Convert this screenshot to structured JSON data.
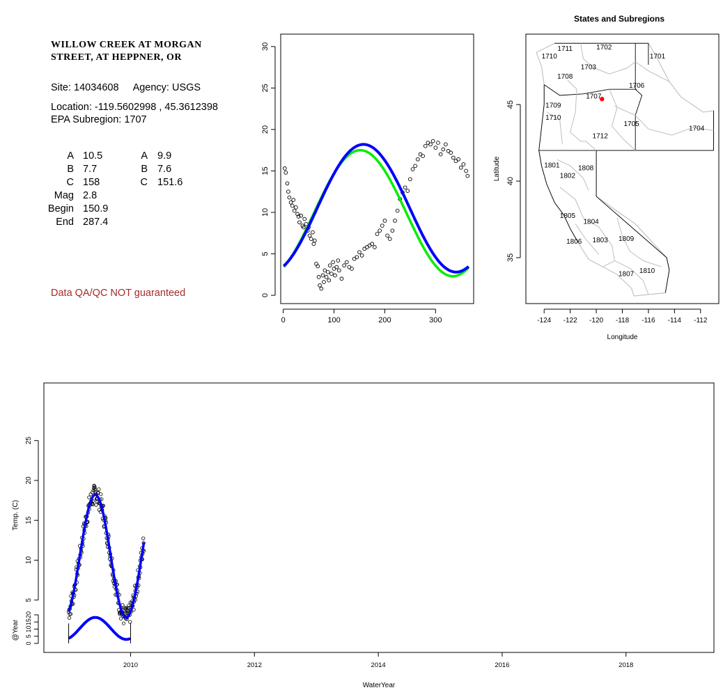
{
  "info": {
    "station_line1": "WILLOW CREEK AT MORGAN",
    "station_line2": "STREET, AT HEPPNER, OR",
    "site_label": "Site: 14034608",
    "agency_label": "Agency: USGS",
    "location_label": "Location: -119.5602998 , 45.3612398",
    "subregion_label": "EPA Subregion: 1707",
    "params_left": [
      {
        "label": "A",
        "value": "10.5"
      },
      {
        "label": "B",
        "value": "7.7"
      },
      {
        "label": "C",
        "value": "158"
      },
      {
        "label": "Mag",
        "value": "2.8"
      },
      {
        "label": "Begin",
        "value": "150.9"
      },
      {
        "label": "End",
        "value": "287.4"
      }
    ],
    "params_right": [
      {
        "label": "A",
        "value": "9.9"
      },
      {
        "label": "B",
        "value": "7.6"
      },
      {
        "label": "C",
        "value": "151.6"
      }
    ],
    "disclaimer": "Data QA/QC NOT guaranteed"
  },
  "colors": {
    "fit_blue": "#0000ff",
    "fit_green": "#00ee00",
    "point_red": "#ff0000",
    "disclaimer": "#a52a2a",
    "subregion_border": "#bebebe"
  },
  "chart_data": [
    {
      "type": "scatter",
      "title": "",
      "xlabel": "",
      "ylabel": "",
      "xlim": [
        -5,
        375
      ],
      "ylim": [
        -1,
        31.5
      ],
      "x_ticks": [
        "0",
        "100",
        "200",
        "300"
      ],
      "y_ticks": [
        "0",
        "5",
        "10",
        "15",
        "20",
        "25",
        "30"
      ],
      "series": [
        {
          "kind": "points",
          "x": [
            3,
            5,
            8,
            10,
            12,
            15,
            18,
            20,
            22,
            25,
            28,
            30,
            32,
            35,
            38,
            40,
            42,
            45,
            48,
            50,
            52,
            55,
            58,
            60,
            62,
            65,
            68,
            70,
            72,
            75,
            78,
            80,
            82,
            85,
            88,
            90,
            92,
            95,
            98,
            100,
            102,
            105,
            108,
            110,
            115,
            120,
            125,
            130,
            135,
            140,
            145,
            150,
            155,
            160,
            165,
            170,
            175,
            180,
            185,
            190,
            195,
            200,
            205,
            210,
            215,
            220,
            225,
            230,
            235,
            240,
            245,
            250,
            255,
            260,
            265,
            270,
            275,
            280,
            285,
            290,
            295,
            300,
            305,
            310,
            315,
            320,
            325,
            330,
            335,
            340,
            345,
            350,
            355,
            360,
            363
          ],
          "y": [
            15.3,
            14.8,
            13.5,
            12.5,
            11.8,
            11.2,
            10.8,
            11.5,
            10.2,
            10.6,
            9.8,
            9.5,
            8.8,
            9.6,
            8.4,
            8.2,
            9.2,
            8.6,
            7.8,
            8.2,
            7.2,
            6.8,
            7.6,
            6.2,
            6.6,
            3.8,
            3.5,
            2.2,
            1.2,
            0.8,
            2.4,
            1.6,
            3.0,
            2.2,
            2.8,
            1.8,
            3.6,
            2.6,
            4.0,
            3.2,
            2.4,
            3.4,
            4.2,
            3.0,
            2.0,
            3.6,
            4.0,
            3.4,
            3.2,
            4.4,
            4.6,
            5.2,
            4.8,
            5.6,
            5.8,
            6.0,
            6.2,
            5.8,
            7.4,
            7.8,
            8.4,
            9.0,
            7.2,
            6.8,
            7.8,
            9.0,
            10.2,
            11.6,
            12.4,
            13.0,
            12.6,
            14.0,
            15.2,
            15.6,
            16.4,
            17.0,
            16.8,
            18.0,
            18.4,
            18.2,
            18.6,
            17.8,
            18.4,
            17.0,
            17.6,
            18.2,
            17.4,
            17.2,
            16.6,
            16.2,
            16.4,
            15.4,
            15.8,
            15.0,
            14.4
          ]
        },
        {
          "kind": "line",
          "name": "",
          "color": "#00ee00",
          "params": {
            "A": 9.9,
            "B": 7.6,
            "C": 151.6
          },
          "x_range": [
            1,
            365
          ]
        },
        {
          "kind": "line",
          "name": "",
          "color": "#0000ff",
          "params": {
            "A": 10.5,
            "B": 7.7,
            "C": 158
          },
          "x_range": [
            1,
            365
          ]
        }
      ]
    },
    {
      "type": "map",
      "title": "States and Subregions",
      "xlabel": "Longitude",
      "ylabel": "Latitude",
      "xlim": [
        -125.4,
        -110.6
      ],
      "ylim": [
        32,
        49.6
      ],
      "x_ticks": [
        "-124",
        "-122",
        "-120",
        "-118",
        "-116",
        "-114",
        "-112"
      ],
      "y_ticks": [
        "35",
        "40",
        "45"
      ],
      "subregions": [
        {
          "label": "1702",
          "lon": -119.4,
          "lat": 48.6
        },
        {
          "label": "1701",
          "lon": -115.3,
          "lat": 48.0
        },
        {
          "label": "1711",
          "lon": -122.4,
          "lat": 48.5
        },
        {
          "label": "1710",
          "lon": -123.6,
          "lat": 48.0
        },
        {
          "label": "1703",
          "lon": -120.6,
          "lat": 47.3
        },
        {
          "label": "1708",
          "lon": -122.4,
          "lat": 46.7
        },
        {
          "label": "1706",
          "lon": -116.9,
          "lat": 46.1
        },
        {
          "label": "1707",
          "lon": -120.2,
          "lat": 45.4
        },
        {
          "label": "1709",
          "lon": -123.3,
          "lat": 44.8
        },
        {
          "label": "1710",
          "lon": -123.3,
          "lat": 44.0
        },
        {
          "label": "1705",
          "lon": -117.3,
          "lat": 43.6
        },
        {
          "label": "1704",
          "lon": -112.3,
          "lat": 43.3
        },
        {
          "label": "1712",
          "lon": -119.7,
          "lat": 42.8
        },
        {
          "label": "1801",
          "lon": -123.4,
          "lat": 40.9
        },
        {
          "label": "1808",
          "lon": -120.8,
          "lat": 40.7
        },
        {
          "label": "1802",
          "lon": -122.2,
          "lat": 40.2
        },
        {
          "label": "1805",
          "lon": -122.2,
          "lat": 37.6
        },
        {
          "label": "1804",
          "lon": -120.4,
          "lat": 37.2
        },
        {
          "label": "1806",
          "lon": -121.7,
          "lat": 35.9
        },
        {
          "label": "1803",
          "lon": -119.7,
          "lat": 36.0
        },
        {
          "label": "1809",
          "lon": -117.7,
          "lat": 36.1
        },
        {
          "label": "1807",
          "lon": -117.7,
          "lat": 33.8
        },
        {
          "label": "1810",
          "lon": -116.1,
          "lat": 34.0
        }
      ],
      "site_point": {
        "lon": -119.5602998,
        "lat": 45.3612398
      }
    },
    {
      "type": "scatter",
      "title": "",
      "xlabel": "WaterYear",
      "ylabel": "Temp. (C)",
      "ylabel2": "@Year",
      "xlim": [
        2008.6,
        2019.42
      ],
      "ylim": [
        -1,
        31
      ],
      "x_ticks": [
        "2010",
        "2012",
        "2014",
        "2016",
        "2018"
      ],
      "y_ticks": [
        "5",
        "10",
        "15",
        "20",
        "25"
      ],
      "y2_ticks": [
        "0",
        "5",
        "10",
        "15",
        "20"
      ],
      "series": [
        {
          "kind": "points-and-fit",
          "color": "#0000ff",
          "x_range": [
            2009.0,
            2010.22
          ],
          "params": {
            "A": 10.5,
            "B": 7.7,
            "C": 158
          }
        },
        {
          "kind": "annual-fit",
          "color": "#0000ff",
          "x_range": [
            2009.0,
            2010.0
          ],
          "params": {
            "A": 10.5,
            "B": 7.7,
            "C": 158
          }
        }
      ]
    }
  ]
}
